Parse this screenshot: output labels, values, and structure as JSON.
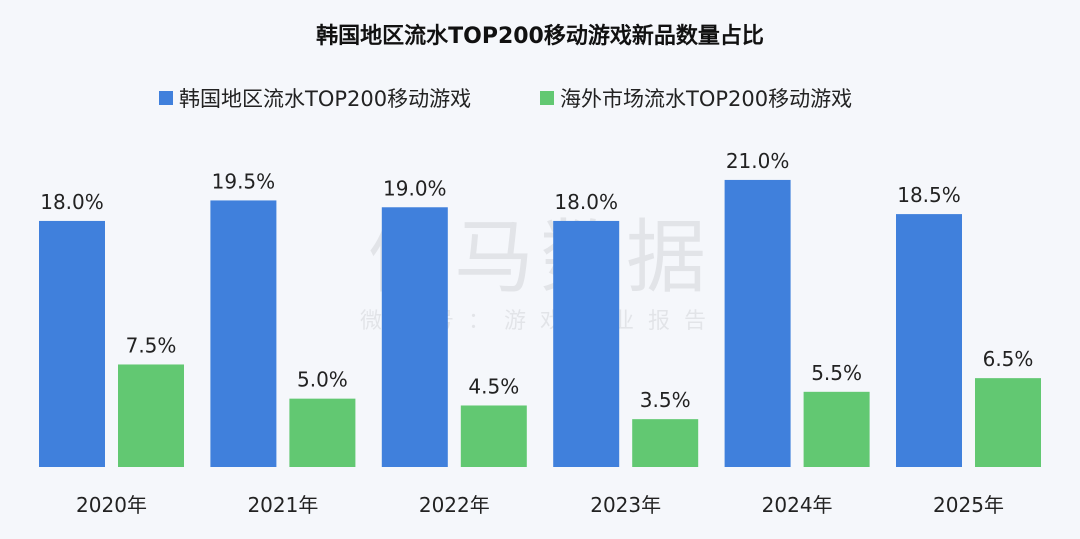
{
  "chart_data": {
    "type": "bar",
    "title": "韩国地区流水TOP200移动游戏新品数量占比",
    "categories": [
      "2020年",
      "2021年",
      "2022年",
      "2023年",
      "2024年",
      "2025年"
    ],
    "series": [
      {
        "name": "韩国地区流水TOP200移动游戏",
        "values": [
          18.0,
          19.5,
          19.0,
          18.0,
          21.0,
          18.5
        ],
        "labels": [
          "18.0%",
          "19.5%",
          "19.0%",
          "18.0%",
          "21.0%",
          "18.5%"
        ],
        "color": "#4080dc"
      },
      {
        "name": "海外市场流水TOP200移动游戏",
        "values": [
          7.5,
          5.0,
          4.5,
          3.5,
          5.5,
          6.5
        ],
        "labels": [
          "7.5%",
          "5.0%",
          "4.5%",
          "3.5%",
          "5.5%",
          "6.5%"
        ],
        "color": "#62c872"
      }
    ],
    "ylim": [
      0,
      21.5
    ],
    "grid": false,
    "legend": "top",
    "xlabel": "",
    "ylabel": ""
  },
  "watermark": {
    "main": "伽马数据",
    "sub": "微信号：游戏产业报告"
  }
}
